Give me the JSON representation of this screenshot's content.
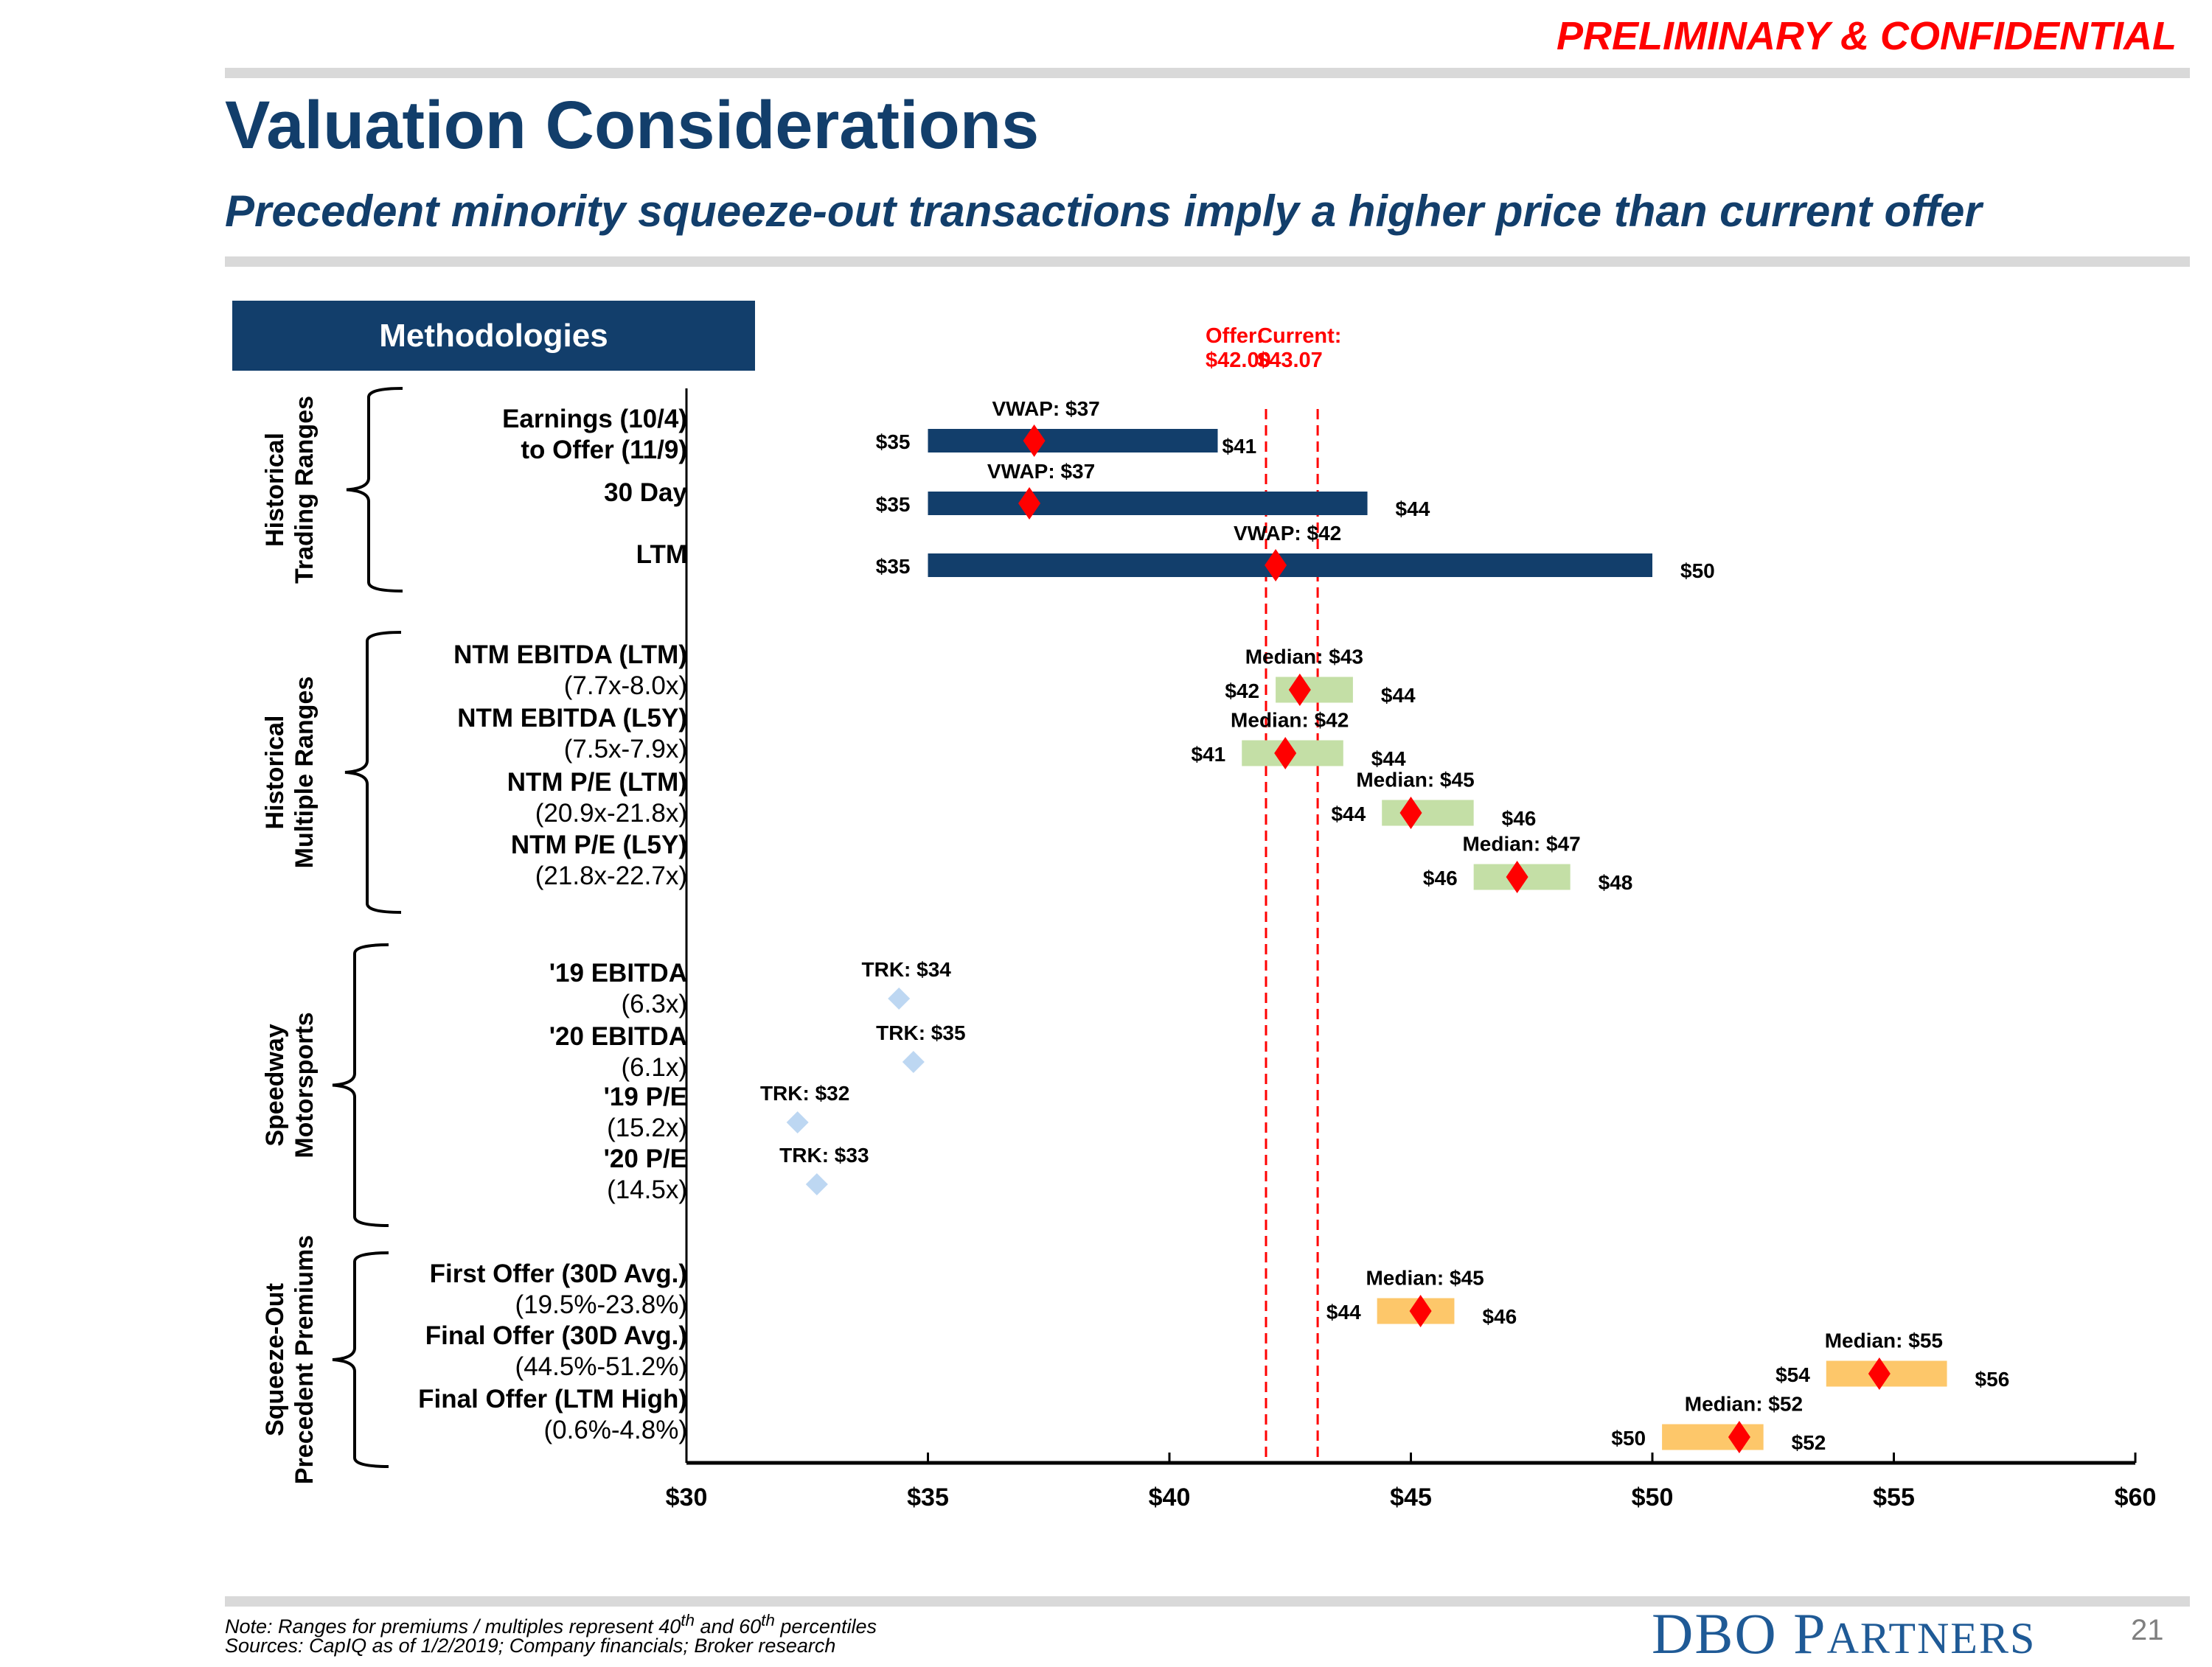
{
  "header": {
    "confidential": "PRELIMINARY & CONFIDENTIAL",
    "title": "Valuation Considerations",
    "subtitle": "Precedent minority squeeze-out transactions imply a higher price than current offer"
  },
  "methodologies_label": "Methodologies",
  "groups": [
    {
      "label_lines": [
        "Historical",
        "Trading Ranges"
      ]
    },
    {
      "label_lines": [
        "Historical",
        "Multiple Ranges"
      ]
    },
    {
      "label_lines": [
        "Speedway",
        "Motorsports"
      ]
    },
    {
      "label_lines": [
        "Squeeze-Out",
        "Precedent Premiums"
      ]
    }
  ],
  "rows": [
    {
      "group": 0,
      "lines": [
        {
          "t": "Earnings (10/4)",
          "b": true
        },
        {
          "t": "to Offer (11/9)",
          "b": true
        }
      ]
    },
    {
      "group": 0,
      "lines": [
        {
          "t": "30 Day",
          "b": true
        }
      ]
    },
    {
      "group": 0,
      "lines": [
        {
          "t": "LTM",
          "b": true
        }
      ]
    },
    {
      "group": 1,
      "lines": [
        {
          "t": "NTM EBITDA (LTM)",
          "b": true
        },
        {
          "t": "(7.7x-8.0x)",
          "b": false
        }
      ]
    },
    {
      "group": 1,
      "lines": [
        {
          "t": "NTM EBITDA (L5Y)",
          "b": true
        },
        {
          "t": "(7.5x-7.9x)",
          "b": false
        }
      ]
    },
    {
      "group": 1,
      "lines": [
        {
          "t": "NTM P/E (LTM)",
          "b": true
        },
        {
          "t": "(20.9x-21.8x)",
          "b": false
        }
      ]
    },
    {
      "group": 1,
      "lines": [
        {
          "t": "NTM P/E (L5Y)",
          "b": true
        },
        {
          "t": "(21.8x-22.7x)",
          "b": false
        }
      ]
    },
    {
      "group": 2,
      "lines": [
        {
          "t": "'19 EBITDA",
          "b": true
        },
        {
          "t": "(6.3x)",
          "b": false
        }
      ]
    },
    {
      "group": 2,
      "lines": [
        {
          "t": "'20 EBITDA",
          "b": true
        },
        {
          "t": "(6.1x)",
          "b": false
        }
      ]
    },
    {
      "group": 2,
      "lines": [
        {
          "t": "'19 P/E",
          "b": true
        },
        {
          "t": "(15.2x)",
          "b": false
        }
      ]
    },
    {
      "group": 2,
      "lines": [
        {
          "t": "'20 P/E",
          "b": true
        },
        {
          "t": "(14.5x)",
          "b": false
        }
      ]
    },
    {
      "group": 3,
      "lines": [
        {
          "t": "First Offer (30D Avg.)",
          "b": true
        },
        {
          "t": "(19.5%-23.8%)",
          "b": false
        }
      ]
    },
    {
      "group": 3,
      "lines": [
        {
          "t": "Final Offer (30D Avg.)",
          "b": true
        },
        {
          "t": "(44.5%-51.2%)",
          "b": false
        }
      ]
    },
    {
      "group": 3,
      "lines": [
        {
          "t": "Final Offer (LTM High)",
          "b": true
        },
        {
          "t": "(0.6%-4.8%)",
          "b": false
        }
      ]
    }
  ],
  "chart_data": {
    "type": "football-field",
    "xlabel": "",
    "xlim": [
      30,
      60
    ],
    "x_ticks": [
      30,
      35,
      40,
      45,
      50,
      55,
      60
    ],
    "x_tick_labels": [
      "$30",
      "$35",
      "$40",
      "$45",
      "$50",
      "$55",
      "$60"
    ],
    "reference_lines": [
      {
        "name": "Offer",
        "value": 42.0,
        "label": [
          "Offer:",
          "$42.00"
        ],
        "color": "#ff0000"
      },
      {
        "name": "Current",
        "value": 43.07,
        "label": [
          "Current:",
          "$43.07"
        ],
        "color": "#ff0000"
      }
    ],
    "colors": {
      "trading": "#123e6b",
      "multiple": "#c4dfa6",
      "premium": "#fdc76a",
      "marker": "#ff0000",
      "peer": "#bdd7f2"
    },
    "series": [
      {
        "row": 0,
        "kind": "trading",
        "low": 35,
        "high": 41,
        "mid": 37.2,
        "low_label": "$35",
        "high_label": "$41",
        "mid_label": "VWAP: $37"
      },
      {
        "row": 1,
        "kind": "trading",
        "low": 35,
        "high": 44.1,
        "mid": 37.1,
        "low_label": "$35",
        "high_label": "$44",
        "mid_label": "VWAP: $37"
      },
      {
        "row": 2,
        "kind": "trading",
        "low": 35,
        "high": 50,
        "mid": 42.2,
        "low_label": "$35",
        "high_label": "$50",
        "mid_label": "VWAP: $42"
      },
      {
        "row": 3,
        "kind": "multiple",
        "low": 42.2,
        "high": 43.8,
        "mid": 42.7,
        "low_label": "$42",
        "high_label": "$44",
        "mid_label": "Median: $43"
      },
      {
        "row": 4,
        "kind": "multiple",
        "low": 41.5,
        "high": 43.6,
        "mid": 42.4,
        "low_label": "$41",
        "high_label": "$44",
        "mid_label": "Median: $42"
      },
      {
        "row": 5,
        "kind": "multiple",
        "low": 44.4,
        "high": 46.3,
        "mid": 45.0,
        "low_label": "$44",
        "high_label": "$46",
        "mid_label": "Median: $45"
      },
      {
        "row": 6,
        "kind": "multiple",
        "low": 46.3,
        "high": 48.3,
        "mid": 47.2,
        "low_label": "$46",
        "high_label": "$48",
        "mid_label": "Median: $47"
      },
      {
        "row": 7,
        "kind": "peer",
        "mid": 34.4,
        "mid_label": "TRK:  $34"
      },
      {
        "row": 8,
        "kind": "peer",
        "mid": 34.7,
        "mid_label": "TRK:  $35"
      },
      {
        "row": 9,
        "kind": "peer",
        "mid": 32.3,
        "mid_label": "TRK:  $32"
      },
      {
        "row": 10,
        "kind": "peer",
        "mid": 32.7,
        "mid_label": "TRK:  $33"
      },
      {
        "row": 11,
        "kind": "premium",
        "low": 44.3,
        "high": 45.9,
        "mid": 45.2,
        "low_label": "$44",
        "high_label": "$46",
        "mid_label": "Median: $45"
      },
      {
        "row": 12,
        "kind": "premium",
        "low": 53.6,
        "high": 56.1,
        "mid": 54.7,
        "low_label": "$54",
        "high_label": "$56",
        "mid_label": "Median: $55"
      },
      {
        "row": 13,
        "kind": "premium",
        "low": 50.2,
        "high": 52.3,
        "mid": 51.8,
        "low_label": "$50",
        "high_label": "$52",
        "mid_label": "Median: $52"
      }
    ]
  },
  "footer": {
    "note_prefix": "Note: Ranges for premiums / multiples represent 40",
    "note_sup1": "th",
    "note_mid": " and 60",
    "note_sup2": "th",
    "note_suffix": " percentiles",
    "sources": "Sources: CapIQ as of 1/2/2019; Company financials; Broker research",
    "logo_big1": "DBO P",
    "logo_small": "ARTNERS",
    "page_number": "21"
  }
}
